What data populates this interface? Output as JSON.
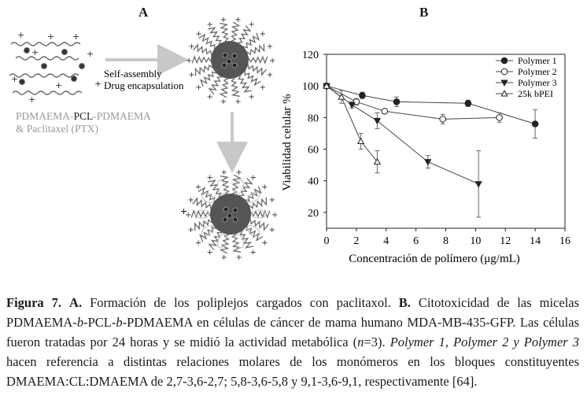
{
  "panel_a": {
    "label": "A",
    "step1_line1": "Self-assembly",
    "step1_line2": "Drug encapsulation",
    "copolymer_part1": "PDMAEMA-",
    "copolymer_part2": "PCL",
    "copolymer_part3": "-PDMAEMA",
    "drug_line": "& Paclitaxel (PTX)",
    "colors": {
      "micelle": "#555555",
      "arrow": "#c8c8c8",
      "chain": "#6a6a6a",
      "light_text": "#9a9a9a"
    }
  },
  "panel_b": {
    "label": "B"
  },
  "chart_data": {
    "type": "line",
    "xlabel": "Concentración de polímero (μg/mL)",
    "ylabel": "Viabilidad celular %",
    "xlim": [
      0,
      16
    ],
    "ylim": [
      10,
      120
    ],
    "xticks": [
      0,
      2,
      4,
      6,
      8,
      10,
      12,
      14,
      16
    ],
    "yticks": [
      20,
      40,
      60,
      80,
      100,
      120
    ],
    "legend_position": "top-right",
    "series": [
      {
        "name": "Polymer 1",
        "marker": "filled-circle",
        "x": [
          0,
          2.4,
          4.7,
          9.5,
          14
        ],
        "y": [
          100,
          94,
          90,
          89,
          76
        ],
        "err": [
          0,
          2,
          3,
          2,
          9
        ]
      },
      {
        "name": "Polymer 2",
        "marker": "open-circle",
        "x": [
          0,
          2,
          3.9,
          7.8,
          11.6
        ],
        "y": [
          100,
          90,
          84,
          79,
          80
        ],
        "err": [
          0,
          2,
          1,
          3,
          3
        ]
      },
      {
        "name": "Polymer 3",
        "marker": "filled-triangle-down",
        "x": [
          0,
          1.7,
          3.4,
          6.8,
          10.2
        ],
        "y": [
          100,
          88,
          78,
          52,
          38
        ],
        "err": [
          0,
          2,
          5,
          4,
          21
        ]
      },
      {
        "name": "25k bPEI",
        "marker": "open-triangle-up",
        "x": [
          0,
          1,
          2.3,
          3.4
        ],
        "y": [
          100,
          93,
          65,
          52
        ],
        "err": [
          0,
          4,
          5,
          7
        ]
      }
    ]
  },
  "caption": {
    "fig_label": "Figura 7.",
    "a_label": "A.",
    "a_text": "Formación de los poliplejos cargados con paclitaxol.",
    "b_label": "B.",
    "b_text_1": "Citotoxicidad de las micelas PDMAEMA-",
    "b_italic_1": "b",
    "b_text_2": "-PCL-",
    "b_italic_2": "b",
    "b_text_3": "-PDMAEMA en células de cáncer de mama humano MDA-MB-435-GFP. Las células fueron tratadas por 24 horas y se midió la actividad metabólica (",
    "n_italic": "n",
    "b_text_4": "=3).",
    "poly_italic": "Polymer 1, Polymer 2 y Polymer 3",
    "b_text_5": "hacen referencia a distintas relaciones molares de los monómeros en los bloques constituyentes DMAEMA:CL:DMAEMA de 2,7-3,6-2,7; 5,8-3,6-5,8 y 9,1-3,6-9,1, respectivamente [64]."
  }
}
